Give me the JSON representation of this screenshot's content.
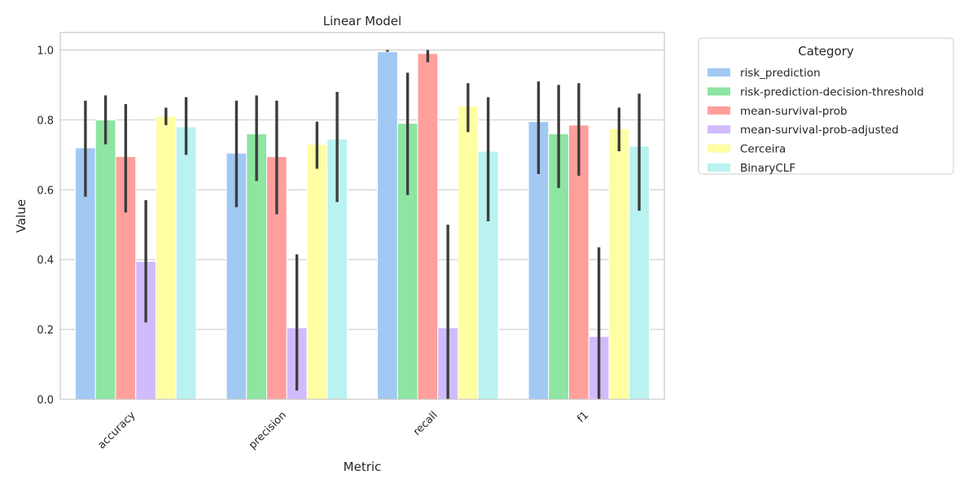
{
  "chart_data": {
    "type": "bar",
    "title": "Linear Model",
    "xlabel": "Metric",
    "ylabel": "Value",
    "ylim": [
      0,
      1.05
    ],
    "yticks": [
      0.0,
      0.2,
      0.4,
      0.6,
      0.8,
      1.0
    ],
    "ytick_labels": [
      "0.0",
      "0.2",
      "0.4",
      "0.6",
      "0.8",
      "1.0"
    ],
    "grid": true,
    "legend_title": "Category",
    "legend_position": "outside-top-right",
    "categories": [
      "accuracy",
      "precision",
      "recall",
      "f1"
    ],
    "series": [
      {
        "name": "risk_prediction",
        "color": "#a1c9f4",
        "values": [
          0.72,
          0.705,
          0.995,
          0.795
        ],
        "ci_low": [
          0.58,
          0.55,
          0.995,
          0.645
        ],
        "ci_high": [
          0.855,
          0.855,
          1.0,
          0.91
        ]
      },
      {
        "name": "risk-prediction-decision-threshold",
        "color": "#8de5a1",
        "values": [
          0.8,
          0.76,
          0.79,
          0.76
        ],
        "ci_low": [
          0.73,
          0.625,
          0.585,
          0.605
        ],
        "ci_high": [
          0.87,
          0.87,
          0.935,
          0.9
        ]
      },
      {
        "name": "mean-survival-prob",
        "color": "#ff9f9b",
        "values": [
          0.695,
          0.695,
          0.99,
          0.785
        ],
        "ci_low": [
          0.535,
          0.53,
          0.965,
          0.64
        ],
        "ci_high": [
          0.845,
          0.855,
          1.0,
          0.905
        ]
      },
      {
        "name": "mean-survival-prob-adjusted",
        "color": "#d0bbff",
        "values": [
          0.395,
          0.205,
          0.205,
          0.18
        ],
        "ci_low": [
          0.22,
          0.025,
          0.0,
          0.0
        ],
        "ci_high": [
          0.57,
          0.415,
          0.5,
          0.435
        ]
      },
      {
        "name": "Cerceira",
        "color": "#fffea3",
        "values": [
          0.81,
          0.73,
          0.84,
          0.775
        ],
        "ci_low": [
          0.785,
          0.66,
          0.765,
          0.71
        ],
        "ci_high": [
          0.835,
          0.795,
          0.905,
          0.835
        ]
      },
      {
        "name": "BinaryCLF",
        "color": "#b9f2f0",
        "values": [
          0.78,
          0.745,
          0.71,
          0.725
        ],
        "ci_low": [
          0.7,
          0.565,
          0.51,
          0.54
        ],
        "ci_high": [
          0.865,
          0.88,
          0.865,
          0.875
        ]
      }
    ]
  }
}
